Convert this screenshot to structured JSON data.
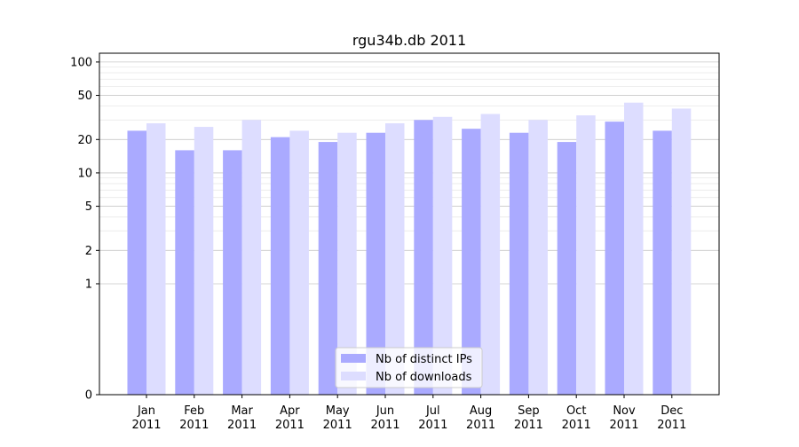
{
  "chart_data": {
    "type": "bar",
    "title": "rgu34b.db 2011",
    "xlabel": "",
    "ylabel": "",
    "yscale": "symlog",
    "ylim": [
      0,
      120
    ],
    "yticks": [
      0,
      1,
      2,
      5,
      10,
      20,
      50,
      100
    ],
    "ytick_labels": [
      "0",
      "1",
      "2",
      "5",
      "10",
      "20",
      "50",
      "100"
    ],
    "grid": true,
    "legend_position": "bottom-center",
    "categories": [
      "Jan\n2011",
      "Feb\n2011",
      "Mar\n2011",
      "Apr\n2011",
      "May\n2011",
      "Jun\n2011",
      "Jul\n2011",
      "Aug\n2011",
      "Sep\n2011",
      "Oct\n2011",
      "Nov\n2011",
      "Dec\n2011"
    ],
    "series": [
      {
        "name": "Nb of distinct IPs",
        "color": "#aaaaff",
        "values": [
          24,
          16,
          16,
          21,
          19,
          23,
          30,
          25,
          23,
          19,
          29,
          24
        ]
      },
      {
        "name": "Nb of downloads",
        "color": "#ddddff",
        "values": [
          28,
          26,
          30,
          24,
          23,
          28,
          32,
          34,
          30,
          33,
          43,
          38
        ]
      }
    ]
  }
}
